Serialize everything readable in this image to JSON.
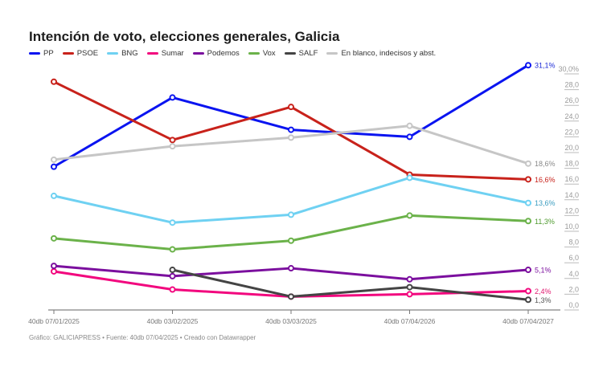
{
  "chart_data": {
    "type": "line",
    "title": "Intención de voto, elecciones generales, Galicia",
    "categories": [
      "40db 07/01/2025",
      "40db 03/02/2025",
      "40db 03/03/2025",
      "40db 07/04/2026",
      "40db 07/04/2027"
    ],
    "ylim": [
      0,
      30
    ],
    "yticks": [
      "0,0",
      "2,0",
      "4,0",
      "6,0",
      "8,0",
      "10,0",
      "12,0",
      "14,0",
      "16,0",
      "18,0",
      "20,0",
      "22,0",
      "24,0",
      "26,0",
      "28,0",
      "30,0%"
    ],
    "y_axis_position": "right",
    "legend_position": "top-left",
    "grid": false,
    "series": [
      {
        "name": "PP",
        "color": "#0a14f0",
        "label_color": "#1c2ad6",
        "values": [
          18.2,
          27.0,
          22.9,
          22.0,
          31.1
        ],
        "end_label": "31,1%"
      },
      {
        "name": "PSOE",
        "color": "#c8221b",
        "label_color": "#c8221b",
        "values": [
          29.0,
          21.6,
          25.8,
          17.2,
          16.6
        ],
        "end_label": "16,6%"
      },
      {
        "name": "BNG",
        "color": "#6fd1f2",
        "label_color": "#3a9cbf",
        "values": [
          14.5,
          11.1,
          12.1,
          16.8,
          13.6
        ],
        "end_label": "13,6%"
      },
      {
        "name": "Sumar",
        "color": "#f2077e",
        "label_color": "#e0186f",
        "values": [
          4.9,
          2.6,
          1.7,
          2.0,
          2.4
        ],
        "end_label": "2,4%"
      },
      {
        "name": "Podemos",
        "color": "#7b0f9e",
        "label_color": "#7b0f9e",
        "values": [
          5.6,
          4.3,
          5.3,
          3.9,
          5.1
        ],
        "end_label": "5,1%"
      },
      {
        "name": "Vox",
        "color": "#6bb24a",
        "label_color": "#4f9a2f",
        "values": [
          9.1,
          7.7,
          8.8,
          12.0,
          11.3
        ],
        "end_label": "11,3%"
      },
      {
        "name": "SALF",
        "color": "#444444",
        "label_color": "#555555",
        "values": [
          null,
          5.1,
          1.7,
          2.9,
          1.3
        ],
        "end_label": "1,3%"
      },
      {
        "name": "En blanco, indecisos y abst.",
        "color": "#c6c6c6",
        "label_color": "#888888",
        "values": [
          19.1,
          20.8,
          21.9,
          23.4,
          18.6
        ],
        "end_label": "18,6%"
      }
    ]
  },
  "footer": "Gráfico: GALICIAPRESS • Fuente: 40db 07/04/2025 • Creado con Datawrapper"
}
